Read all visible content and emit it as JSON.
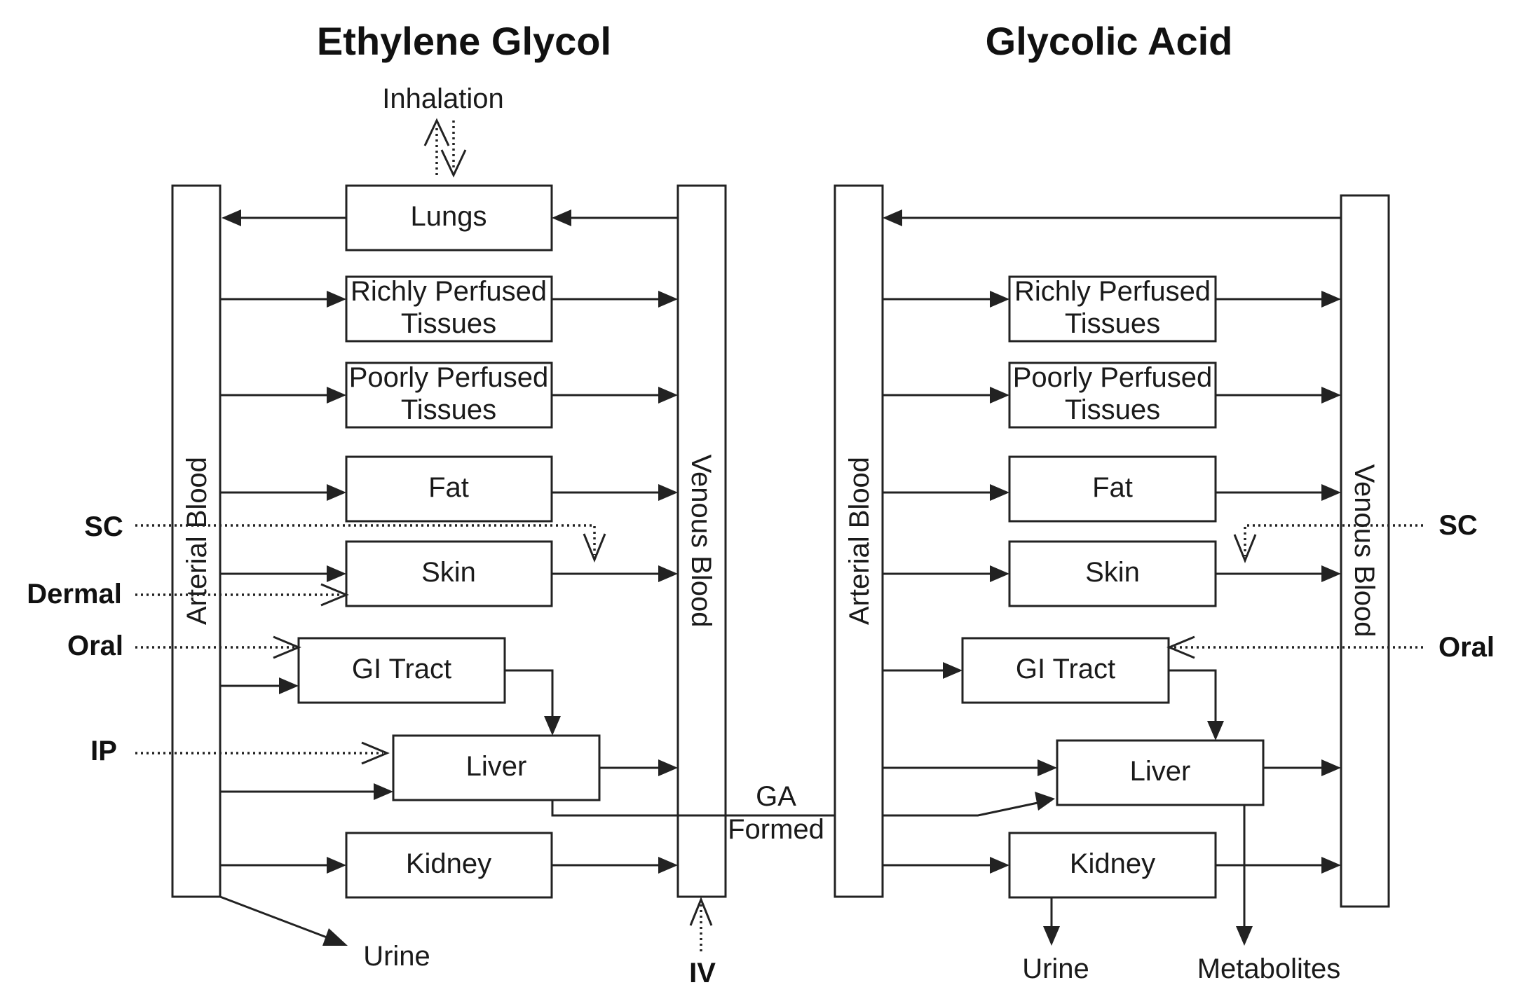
{
  "titles": {
    "ethylene_glycol": "Ethylene Glycol",
    "glycolic_acid": "Glycolic Acid"
  },
  "eg": {
    "inhalation": "Inhalation",
    "arterial": "Arterial Blood",
    "venous": "Venous Blood",
    "lungs": "Lungs",
    "rich_1": "Richly Perfused",
    "rich_2": "Tissues",
    "poor_1": "Poorly Perfused",
    "poor_2": "Tissues",
    "fat": "Fat",
    "skin": "Skin",
    "gi": "GI Tract",
    "liver": "Liver",
    "kidney": "Kidney",
    "urine": "Urine",
    "routes": {
      "sc": "SC",
      "dermal": "Dermal",
      "oral": "Oral",
      "ip": "IP",
      "iv": "IV"
    }
  },
  "ga": {
    "arterial": "Arterial Blood",
    "venous": "Venous Blood",
    "rich_1": "Richly Perfused",
    "rich_2": "Tissues",
    "poor_1": "Poorly Perfused",
    "poor_2": "Tissues",
    "fat": "Fat",
    "skin": "Skin",
    "gi": "GI Tract",
    "liver": "Liver",
    "kidney": "Kidney",
    "urine": "Urine",
    "metabolites": "Metabolites",
    "routes": {
      "sc": "SC",
      "oral": "Oral"
    }
  },
  "link": {
    "ga_formed_1": "GA",
    "ga_formed_2": "Formed"
  }
}
